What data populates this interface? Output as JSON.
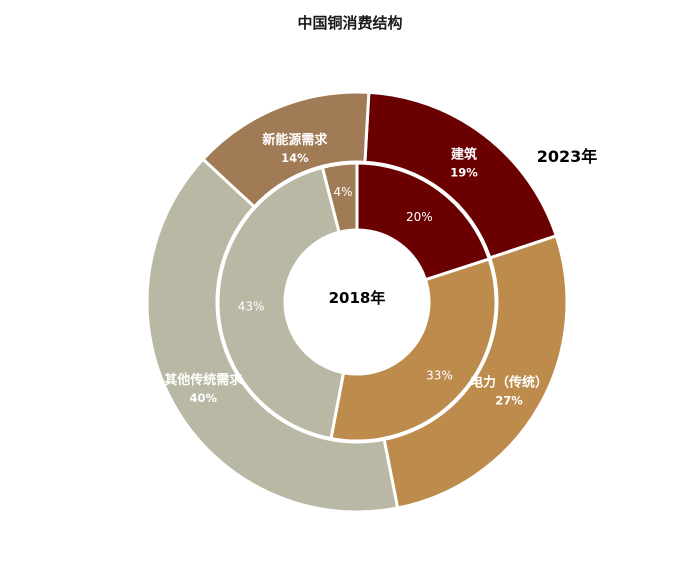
{
  "chart_data": {
    "type": "pie",
    "title": "中国铜消费结构",
    "center_label": "2018年",
    "outer_ring_label": "2023年",
    "categories": [
      "建筑",
      "电力（传统）",
      "其他传统需求",
      "新能源需求"
    ],
    "series": [
      {
        "name": "2023年",
        "values": [
          19,
          27,
          40,
          14
        ],
        "labels": [
          "19%",
          "27%",
          "40%",
          "14%"
        ]
      },
      {
        "name": "2018年",
        "values": [
          20,
          33,
          43,
          4
        ],
        "labels": [
          "20%",
          "33%",
          "43%",
          "4%"
        ]
      }
    ],
    "colors": [
      "#6b0000",
      "#bd8c4c",
      "#b9b8a5",
      "#a17b56"
    ]
  }
}
